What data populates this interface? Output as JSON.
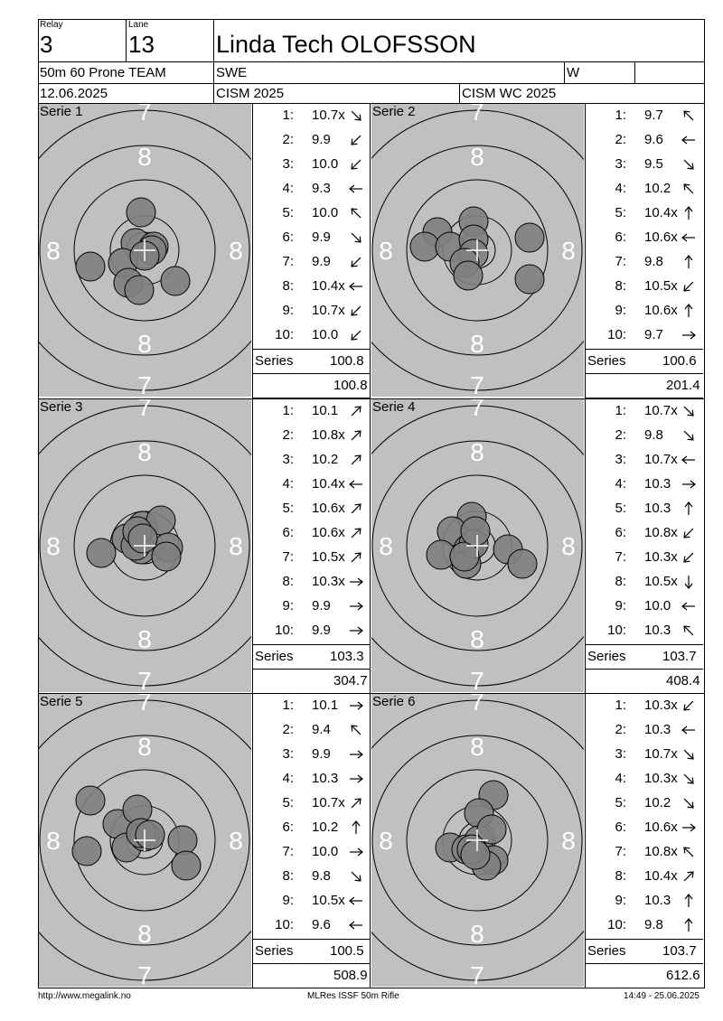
{
  "header": {
    "relay_label": "Relay",
    "relay": "3",
    "lane_label": "Lane",
    "lane": "13",
    "name": "Linda Tech OLOFSSON",
    "event": "50m 60 Prone TEAM",
    "nation": "SWE",
    "gender": "W",
    "date": "12.06.2025",
    "competition": "CISM 2025",
    "match": "CISM WC 2025"
  },
  "target_labels": {
    "ring7": "7",
    "ring8": "8"
  },
  "series_label": "Series",
  "series": [
    {
      "title": "Serie 1",
      "shots": [
        {
          "n": "1:",
          "v": "10.7x",
          "arrow": "arrow-down-right"
        },
        {
          "n": "2:",
          "v": "9.9",
          "arrow": "arrow-down-left"
        },
        {
          "n": "3:",
          "v": "10.0",
          "arrow": "arrow-down-left"
        },
        {
          "n": "4:",
          "v": "9.3",
          "arrow": "arrow-left"
        },
        {
          "n": "5:",
          "v": "10.0",
          "arrow": "arrow-up-left"
        },
        {
          "n": "6:",
          "v": "9.9",
          "arrow": "arrow-down-right"
        },
        {
          "n": "7:",
          "v": "9.9",
          "arrow": "arrow-down-left"
        },
        {
          "n": "8:",
          "v": "10.4x",
          "arrow": "arrow-left"
        },
        {
          "n": "9:",
          "v": "10.7x",
          "arrow": "arrow-down-left"
        },
        {
          "n": "10:",
          "v": "10.0",
          "arrow": "arrow-down-left"
        }
      ],
      "total": "100.8",
      "cumulative": "100.8"
    },
    {
      "title": "Serie 2",
      "shots": [
        {
          "n": "1:",
          "v": "9.7",
          "arrow": "arrow-up-left"
        },
        {
          "n": "2:",
          "v": "9.6",
          "arrow": "arrow-left"
        },
        {
          "n": "3:",
          "v": "9.5",
          "arrow": "arrow-down-right"
        },
        {
          "n": "4:",
          "v": "10.2",
          "arrow": "arrow-up-left"
        },
        {
          "n": "5:",
          "v": "10.4x",
          "arrow": "arrow-up"
        },
        {
          "n": "6:",
          "v": "10.6x",
          "arrow": "arrow-left"
        },
        {
          "n": "7:",
          "v": "9.8",
          "arrow": "arrow-up"
        },
        {
          "n": "8:",
          "v": "10.5x",
          "arrow": "arrow-down-left"
        },
        {
          "n": "9:",
          "v": "10.6x",
          "arrow": "arrow-up"
        },
        {
          "n": "10:",
          "v": "9.7",
          "arrow": "arrow-right"
        }
      ],
      "total": "100.6",
      "cumulative": "201.4"
    },
    {
      "title": "Serie 3",
      "shots": [
        {
          "n": "1:",
          "v": "10.1",
          "arrow": "arrow-up-right"
        },
        {
          "n": "2:",
          "v": "10.8x",
          "arrow": "arrow-up-right"
        },
        {
          "n": "3:",
          "v": "10.2",
          "arrow": "arrow-up-right"
        },
        {
          "n": "4:",
          "v": "10.4x",
          "arrow": "arrow-left"
        },
        {
          "n": "5:",
          "v": "10.6x",
          "arrow": "arrow-up-right"
        },
        {
          "n": "6:",
          "v": "10.6x",
          "arrow": "arrow-up-right"
        },
        {
          "n": "7:",
          "v": "10.5x",
          "arrow": "arrow-up-right"
        },
        {
          "n": "8:",
          "v": "10.3x",
          "arrow": "arrow-right"
        },
        {
          "n": "9:",
          "v": "9.9",
          "arrow": "arrow-right"
        },
        {
          "n": "10:",
          "v": "9.9",
          "arrow": "arrow-right"
        }
      ],
      "total": "103.3",
      "cumulative": "304.7"
    },
    {
      "title": "Serie 4",
      "shots": [
        {
          "n": "1:",
          "v": "10.7x",
          "arrow": "arrow-down-right"
        },
        {
          "n": "2:",
          "v": "9.8",
          "arrow": "arrow-down-right"
        },
        {
          "n": "3:",
          "v": "10.7x",
          "arrow": "arrow-left"
        },
        {
          "n": "4:",
          "v": "10.3",
          "arrow": "arrow-right"
        },
        {
          "n": "5:",
          "v": "10.3",
          "arrow": "arrow-up"
        },
        {
          "n": "6:",
          "v": "10.8x",
          "arrow": "arrow-down-left"
        },
        {
          "n": "7:",
          "v": "10.3x",
          "arrow": "arrow-down-left"
        },
        {
          "n": "8:",
          "v": "10.5x",
          "arrow": "arrow-down"
        },
        {
          "n": "9:",
          "v": "10.0",
          "arrow": "arrow-left"
        },
        {
          "n": "10:",
          "v": "10.3",
          "arrow": "arrow-up-left"
        }
      ],
      "total": "103.7",
      "cumulative": "408.4"
    },
    {
      "title": "Serie 5",
      "shots": [
        {
          "n": "1:",
          "v": "10.1",
          "arrow": "arrow-right"
        },
        {
          "n": "2:",
          "v": "9.4",
          "arrow": "arrow-up-left"
        },
        {
          "n": "3:",
          "v": "9.9",
          "arrow": "arrow-right"
        },
        {
          "n": "4:",
          "v": "10.3",
          "arrow": "arrow-right"
        },
        {
          "n": "5:",
          "v": "10.7x",
          "arrow": "arrow-up-right"
        },
        {
          "n": "6:",
          "v": "10.2",
          "arrow": "arrow-up"
        },
        {
          "n": "7:",
          "v": "10.0",
          "arrow": "arrow-right"
        },
        {
          "n": "8:",
          "v": "9.8",
          "arrow": "arrow-down-right"
        },
        {
          "n": "9:",
          "v": "10.5x",
          "arrow": "arrow-left"
        },
        {
          "n": "10:",
          "v": "9.6",
          "arrow": "arrow-left"
        }
      ],
      "total": "100.5",
      "cumulative": "508.9"
    },
    {
      "title": "Serie 6",
      "shots": [
        {
          "n": "1:",
          "v": "10.3x",
          "arrow": "arrow-down-left"
        },
        {
          "n": "2:",
          "v": "10.3",
          "arrow": "arrow-left"
        },
        {
          "n": "3:",
          "v": "10.7x",
          "arrow": "arrow-down-right"
        },
        {
          "n": "4:",
          "v": "10.3x",
          "arrow": "arrow-down-right"
        },
        {
          "n": "5:",
          "v": "10.2",
          "arrow": "arrow-down-right"
        },
        {
          "n": "6:",
          "v": "10.6x",
          "arrow": "arrow-right"
        },
        {
          "n": "7:",
          "v": "10.8x",
          "arrow": "arrow-up-left"
        },
        {
          "n": "8:",
          "v": "10.4x",
          "arrow": "arrow-up-right"
        },
        {
          "n": "9:",
          "v": "10.3",
          "arrow": "arrow-up"
        },
        {
          "n": "10:",
          "v": "9.8",
          "arrow": "arrow-up"
        }
      ],
      "total": "103.7",
      "cumulative": "612.6"
    }
  ],
  "footer": {
    "url": "http://www.megalink.no",
    "software": "MLRes ISSF 50m Rifle",
    "timestamp": "14:49 - 25.06.2025"
  },
  "colors": {
    "target_bg": "#c0c0c0",
    "shot_fill": "#808080"
  }
}
